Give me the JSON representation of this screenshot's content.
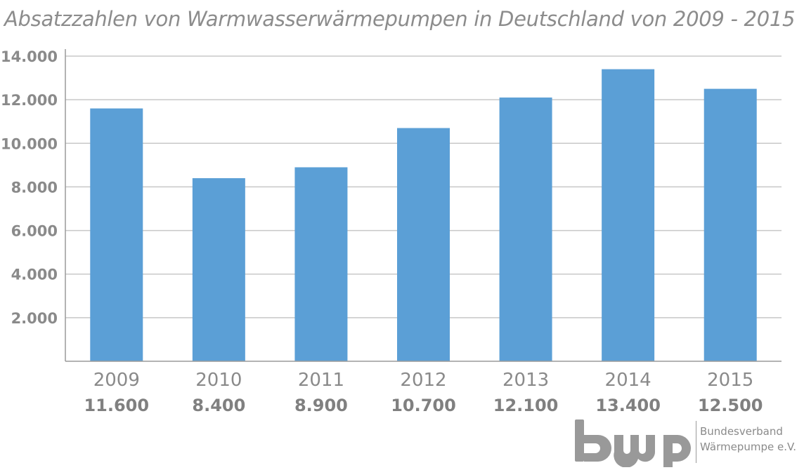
{
  "chart_data": {
    "type": "bar",
    "title": "Absatzzahlen von Warmwasserwärmepumpen in Deutschland von 2009 - 2015",
    "xlabel": "",
    "ylabel": "",
    "categories": [
      "2009",
      "2010",
      "2011",
      "2012",
      "2013",
      "2014",
      "2015"
    ],
    "values": [
      11600,
      8400,
      8900,
      10700,
      12100,
      13400,
      12500
    ],
    "value_labels": [
      "11.600",
      "8.400",
      "8.900",
      "10.700",
      "12.100",
      "13.400",
      "12.500"
    ],
    "ylim": [
      0,
      14000
    ],
    "yticks": [
      2000,
      4000,
      6000,
      8000,
      10000,
      12000,
      14000
    ],
    "ytick_labels": [
      "2.000",
      "4.000",
      "6.000",
      "8.000",
      "10.000",
      "12.000",
      "14.000"
    ],
    "grid": true,
    "legend": "none",
    "bar_color": "#5b9fd6"
  },
  "logo": {
    "mark_text": "bwp",
    "line1": "Bundesverband",
    "line2": "Wärmepumpe e.V."
  },
  "colors": {
    "bar": "#5b9fd6",
    "grid": "#c8c8c8",
    "text": "#8a8a8a"
  }
}
